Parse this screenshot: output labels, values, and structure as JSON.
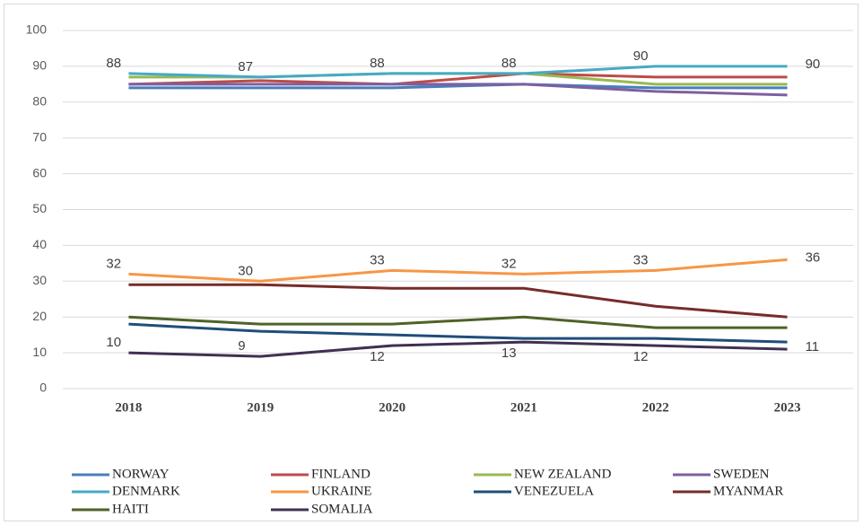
{
  "chart_data": {
    "type": "line",
    "categories": [
      "2018",
      "2019",
      "2020",
      "2021",
      "2022",
      "2023"
    ],
    "ylim": [
      0,
      100
    ],
    "yticks": [
      0,
      10,
      20,
      30,
      40,
      50,
      60,
      70,
      80,
      90,
      100
    ],
    "grid": true,
    "legend": "bottom",
    "series": [
      {
        "name": "NORWAY",
        "color": "#4a7ebb",
        "values": [
          84,
          84,
          84,
          85,
          84,
          84
        ]
      },
      {
        "name": "FINLAND",
        "color": "#be4b48",
        "values": [
          85,
          86,
          85,
          88,
          87,
          87
        ]
      },
      {
        "name": "NEW ZEALAND",
        "color": "#98b954",
        "values": [
          87,
          87,
          88,
          88,
          85,
          85
        ]
      },
      {
        "name": "SWEDEN",
        "color": "#7d60a0",
        "values": [
          85,
          85,
          85,
          85,
          83,
          82
        ]
      },
      {
        "name": "DENMARK",
        "color": "#46aac5",
        "values": [
          88,
          87,
          88,
          88,
          90,
          90
        ],
        "data_labels": true
      },
      {
        "name": "UKRAINE",
        "color": "#f79646",
        "values": [
          32,
          30,
          33,
          32,
          33,
          36
        ],
        "data_labels": true
      },
      {
        "name": "VENEZUELA",
        "color": "#1f4e79",
        "values": [
          18,
          16,
          15,
          14,
          14,
          13
        ]
      },
      {
        "name": "MYANMAR",
        "color": "#772c2a",
        "values": [
          29,
          29,
          28,
          28,
          23,
          20
        ]
      },
      {
        "name": "HAITI",
        "color": "#4f6228",
        "values": [
          20,
          18,
          18,
          20,
          17,
          17
        ]
      },
      {
        "name": "SOMALIA",
        "color": "#3f3151",
        "values": [
          10,
          9,
          12,
          13,
          12,
          11
        ],
        "data_labels": true
      }
    ]
  }
}
